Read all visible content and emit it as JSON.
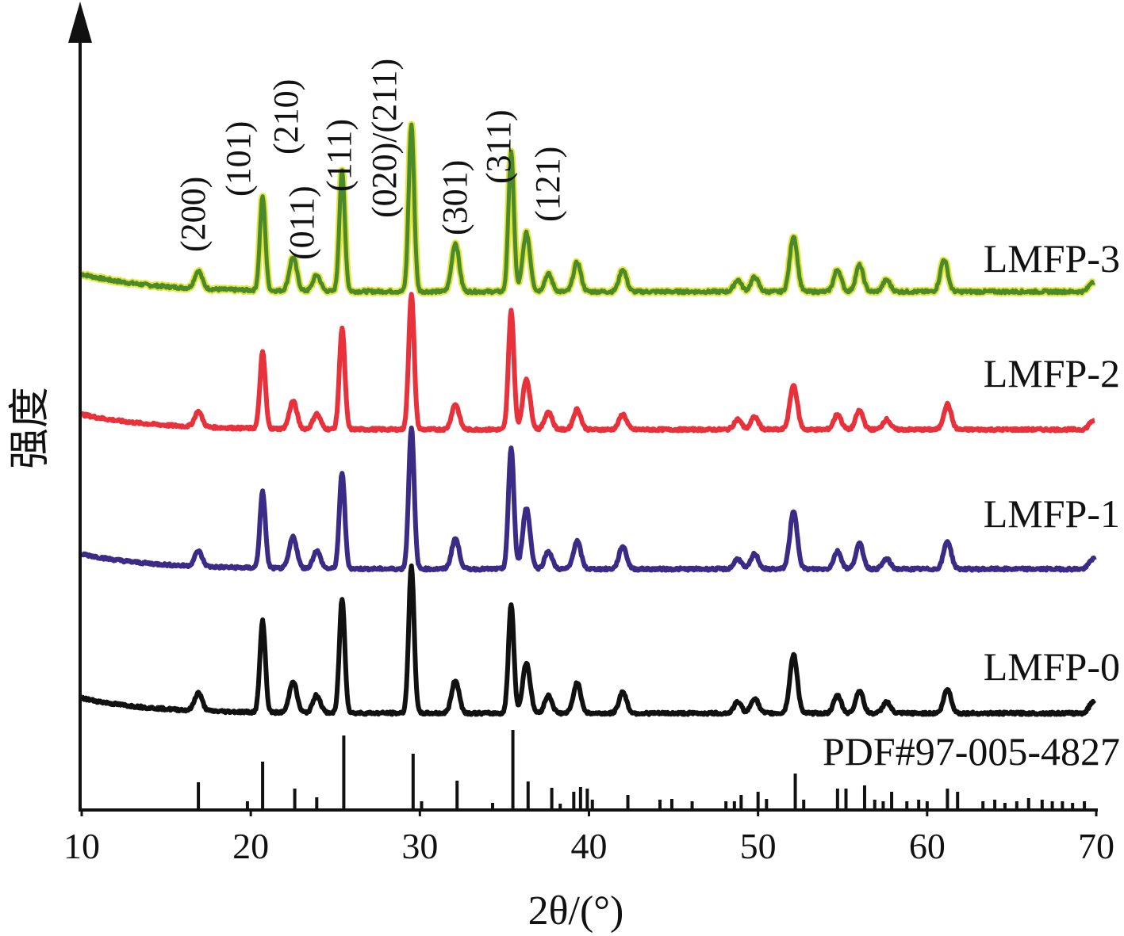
{
  "chart_data": {
    "type": "line",
    "title": "",
    "xlabel": "2θ/(°)",
    "ylabel": "强度",
    "xlim": [
      10,
      70
    ],
    "xticks": [
      10,
      20,
      30,
      40,
      50,
      60,
      70
    ],
    "grid": false,
    "legend": "none",
    "peak_labels": [
      {
        "hkl": "(200)",
        "x": 16.9
      },
      {
        "hkl": "(101)",
        "x": 20.7
      },
      {
        "hkl": "(011)",
        "x": 22.6
      },
      {
        "hkl": "(210)",
        "x": 23.3
      },
      {
        "hkl": "(111)",
        "x": 25.4
      },
      {
        "hkl": "(020)/(211)",
        "x": 29.5
      },
      {
        "hkl": "(301)",
        "x": 32.2
      },
      {
        "hkl": "(311)",
        "x": 35.5
      },
      {
        "hkl": "(121)",
        "x": 36.8
      }
    ],
    "series": [
      {
        "name": "LMFP-3",
        "color": "#4a8a2c",
        "edge_color": "#e6e63a",
        "baseline_start": 0.94,
        "baseline_end": 0.92,
        "noise": 0.02,
        "peaks": [
          {
            "x": 16.9,
            "h": 0.12
          },
          {
            "x": 20.7,
            "h": 0.64
          },
          {
            "x": 22.5,
            "h": 0.23
          },
          {
            "x": 23.9,
            "h": 0.11
          },
          {
            "x": 25.4,
            "h": 0.82
          },
          {
            "x": 29.5,
            "h": 1.14
          },
          {
            "x": 32.1,
            "h": 0.33
          },
          {
            "x": 35.4,
            "h": 0.95
          },
          {
            "x": 36.3,
            "h": 0.4
          },
          {
            "x": 37.6,
            "h": 0.12
          },
          {
            "x": 39.3,
            "h": 0.2
          },
          {
            "x": 42.0,
            "h": 0.15
          },
          {
            "x": 48.8,
            "h": 0.08
          },
          {
            "x": 49.8,
            "h": 0.1
          },
          {
            "x": 52.1,
            "h": 0.38
          },
          {
            "x": 54.7,
            "h": 0.15
          },
          {
            "x": 56.0,
            "h": 0.18
          },
          {
            "x": 57.6,
            "h": 0.08
          },
          {
            "x": 61.0,
            "h": 0.22
          },
          {
            "x": 69.8,
            "h": 0.07
          }
        ]
      },
      {
        "name": "LMFP-2",
        "color": "#e8313a",
        "baseline_start": 0.92,
        "baseline_end": 0.92,
        "noise": 0.02,
        "peaks": [
          {
            "x": 16.9,
            "h": 0.12
          },
          {
            "x": 20.7,
            "h": 0.6
          },
          {
            "x": 22.5,
            "h": 0.22
          },
          {
            "x": 23.9,
            "h": 0.12
          },
          {
            "x": 25.4,
            "h": 0.8
          },
          {
            "x": 29.5,
            "h": 1.07
          },
          {
            "x": 32.1,
            "h": 0.2
          },
          {
            "x": 35.4,
            "h": 0.94
          },
          {
            "x": 36.3,
            "h": 0.4
          },
          {
            "x": 37.6,
            "h": 0.14
          },
          {
            "x": 39.3,
            "h": 0.16
          },
          {
            "x": 42.0,
            "h": 0.12
          },
          {
            "x": 48.8,
            "h": 0.08
          },
          {
            "x": 49.8,
            "h": 0.1
          },
          {
            "x": 52.1,
            "h": 0.35
          },
          {
            "x": 54.7,
            "h": 0.12
          },
          {
            "x": 56.0,
            "h": 0.15
          },
          {
            "x": 57.6,
            "h": 0.08
          },
          {
            "x": 61.2,
            "h": 0.2
          },
          {
            "x": 69.8,
            "h": 0.07
          }
        ]
      },
      {
        "name": "LMFP-1",
        "color": "#3b2a86",
        "baseline_start": 0.95,
        "baseline_end": 0.95,
        "noise": 0.02,
        "peaks": [
          {
            "x": 16.9,
            "h": 0.12
          },
          {
            "x": 20.7,
            "h": 0.6
          },
          {
            "x": 22.5,
            "h": 0.25
          },
          {
            "x": 23.9,
            "h": 0.14
          },
          {
            "x": 25.4,
            "h": 0.76
          },
          {
            "x": 29.5,
            "h": 1.12
          },
          {
            "x": 32.1,
            "h": 0.24
          },
          {
            "x": 35.4,
            "h": 0.96
          },
          {
            "x": 36.3,
            "h": 0.48
          },
          {
            "x": 37.6,
            "h": 0.14
          },
          {
            "x": 39.3,
            "h": 0.22
          },
          {
            "x": 42.0,
            "h": 0.18
          },
          {
            "x": 48.8,
            "h": 0.08
          },
          {
            "x": 49.8,
            "h": 0.12
          },
          {
            "x": 52.1,
            "h": 0.45
          },
          {
            "x": 54.7,
            "h": 0.14
          },
          {
            "x": 56.0,
            "h": 0.2
          },
          {
            "x": 57.6,
            "h": 0.08
          },
          {
            "x": 61.2,
            "h": 0.22
          },
          {
            "x": 69.8,
            "h": 0.08
          }
        ]
      },
      {
        "name": "LMFP-0",
        "color": "#111111",
        "baseline_start": 0.93,
        "baseline_end": 0.93,
        "noise": 0.02,
        "peaks": [
          {
            "x": 16.9,
            "h": 0.14
          },
          {
            "x": 20.7,
            "h": 0.72
          },
          {
            "x": 22.5,
            "h": 0.25
          },
          {
            "x": 23.9,
            "h": 0.14
          },
          {
            "x": 25.4,
            "h": 0.9
          },
          {
            "x": 29.5,
            "h": 1.16
          },
          {
            "x": 32.1,
            "h": 0.26
          },
          {
            "x": 35.4,
            "h": 0.86
          },
          {
            "x": 36.3,
            "h": 0.4
          },
          {
            "x": 37.6,
            "h": 0.14
          },
          {
            "x": 39.3,
            "h": 0.24
          },
          {
            "x": 42.0,
            "h": 0.17
          },
          {
            "x": 48.8,
            "h": 0.09
          },
          {
            "x": 49.8,
            "h": 0.12
          },
          {
            "x": 52.1,
            "h": 0.46
          },
          {
            "x": 54.7,
            "h": 0.14
          },
          {
            "x": 56.0,
            "h": 0.18
          },
          {
            "x": 57.6,
            "h": 0.09
          },
          {
            "x": 61.2,
            "h": 0.19
          },
          {
            "x": 69.8,
            "h": 0.09
          }
        ]
      }
    ],
    "reference": {
      "name": "PDF#97-005-4827",
      "color": "#111111",
      "sticks": [
        {
          "x": 16.9,
          "h": 0.34
        },
        {
          "x": 19.8,
          "h": 0.1
        },
        {
          "x": 20.7,
          "h": 0.6
        },
        {
          "x": 22.6,
          "h": 0.26
        },
        {
          "x": 23.9,
          "h": 0.15
        },
        {
          "x": 25.5,
          "h": 0.93
        },
        {
          "x": 29.6,
          "h": 0.7
        },
        {
          "x": 30.1,
          "h": 0.1
        },
        {
          "x": 32.2,
          "h": 0.36
        },
        {
          "x": 34.3,
          "h": 0.08
        },
        {
          "x": 35.5,
          "h": 1.0
        },
        {
          "x": 36.4,
          "h": 0.35
        },
        {
          "x": 37.8,
          "h": 0.27
        },
        {
          "x": 38.3,
          "h": 0.07
        },
        {
          "x": 39.1,
          "h": 0.22
        },
        {
          "x": 39.5,
          "h": 0.28
        },
        {
          "x": 39.9,
          "h": 0.26
        },
        {
          "x": 40.2,
          "h": 0.12
        },
        {
          "x": 42.3,
          "h": 0.18
        },
        {
          "x": 44.2,
          "h": 0.12
        },
        {
          "x": 44.9,
          "h": 0.13
        },
        {
          "x": 46.1,
          "h": 0.1
        },
        {
          "x": 48.1,
          "h": 0.1
        },
        {
          "x": 48.6,
          "h": 0.1
        },
        {
          "x": 49.0,
          "h": 0.18
        },
        {
          "x": 50.0,
          "h": 0.22
        },
        {
          "x": 50.5,
          "h": 0.13
        },
        {
          "x": 52.2,
          "h": 0.45
        },
        {
          "x": 52.7,
          "h": 0.12
        },
        {
          "x": 54.7,
          "h": 0.26
        },
        {
          "x": 55.2,
          "h": 0.26
        },
        {
          "x": 56.3,
          "h": 0.3
        },
        {
          "x": 56.9,
          "h": 0.12
        },
        {
          "x": 57.4,
          "h": 0.1
        },
        {
          "x": 57.9,
          "h": 0.22
        },
        {
          "x": 58.8,
          "h": 0.1
        },
        {
          "x": 59.5,
          "h": 0.12
        },
        {
          "x": 60.0,
          "h": 0.1
        },
        {
          "x": 61.2,
          "h": 0.26
        },
        {
          "x": 61.8,
          "h": 0.22
        },
        {
          "x": 63.3,
          "h": 0.1
        },
        {
          "x": 64.0,
          "h": 0.12
        },
        {
          "x": 64.6,
          "h": 0.08
        },
        {
          "x": 65.3,
          "h": 0.1
        },
        {
          "x": 66.0,
          "h": 0.14
        },
        {
          "x": 66.8,
          "h": 0.12
        },
        {
          "x": 67.4,
          "h": 0.1
        },
        {
          "x": 68.0,
          "h": 0.1
        },
        {
          "x": 68.6,
          "h": 0.08
        },
        {
          "x": 69.3,
          "h": 0.1
        }
      ]
    }
  }
}
